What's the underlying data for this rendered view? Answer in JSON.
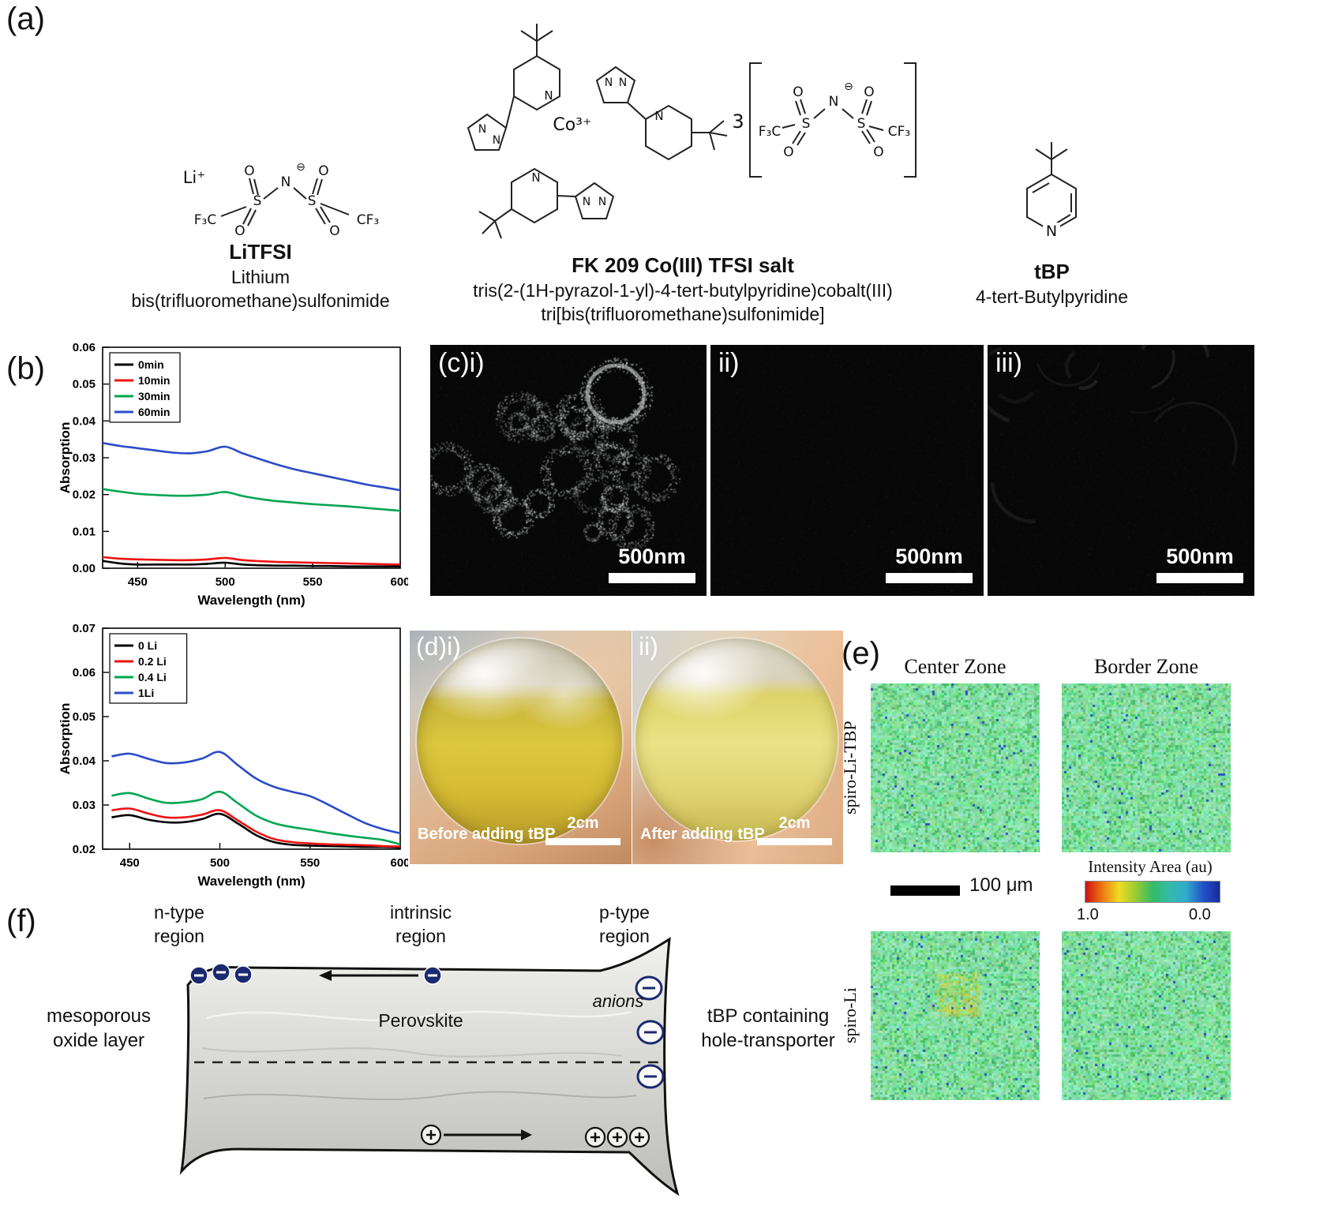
{
  "panel_a": {
    "label": "(a)",
    "litfsi": {
      "cation": "Li⁺",
      "charge": "⊖",
      "n": "N",
      "s": "S",
      "o": "O",
      "left_group": "F₃C",
      "right_group": "CF₃",
      "name": "LiTFSI",
      "caption": [
        "Lithium",
        "bis(trifluoromethane)sulfonimide"
      ]
    },
    "fk209": {
      "center": "Co³⁺",
      "multiplier": "3",
      "charge": "⊖",
      "n": "N",
      "s": "S",
      "o": "O",
      "left_group": "F₃C",
      "right_group": "CF₃",
      "name": "FK 209 Co(III) TFSI salt",
      "caption": [
        "tris(2-(1H-pyrazol-1-yl)-4-tert-butylpyridine)cobalt(III)",
        "tri[bis(trifluoromethane)sulfonimide]"
      ]
    },
    "tbp": {
      "n": "N",
      "name": "tBP",
      "caption": [
        "4-tert-Butylpyridine"
      ]
    }
  },
  "panel_b": {
    "label": "(b)"
  },
  "panel_c": {
    "labels": [
      "(c)i)",
      "ii)",
      "iii)"
    ],
    "scale_bar": "500nm"
  },
  "panel_d": {
    "labels": [
      "(d)i)",
      "ii)"
    ],
    "captions": [
      "Before adding tBP",
      "After adding tBP"
    ],
    "scale_bar": "2cm"
  },
  "panel_e": {
    "label": "(e)",
    "columns": [
      "Center Zone",
      "Border Zone"
    ],
    "rows": [
      "spiro-Li-TBP",
      "spiro-Li"
    ],
    "scale_bar": "100 μm",
    "colorbar_title": "Intensity Area (au)",
    "colorbar_max": "1.0",
    "colorbar_min": "0.0",
    "colorbar_colors": [
      "#cc1111",
      "#ee7711",
      "#eedd22",
      "#99cc33",
      "#33bb66",
      "#33bbaa",
      "#33aacc",
      "#2255cc",
      "#182899"
    ]
  },
  "panel_f": {
    "label": "(f)",
    "regions": [
      {
        "line1": "n-type",
        "line2": "region"
      },
      {
        "line1": "intrinsic",
        "line2": "region"
      },
      {
        "line1": "p-type",
        "line2": "region"
      }
    ],
    "left_label": [
      "mesoporous",
      "oxide layer"
    ],
    "center_label": "Perovskite",
    "anions_label": "anions",
    "right_label": [
      "tBP containing",
      "hole-transporter"
    ]
  },
  "chart_data": [
    {
      "type": "line",
      "title": "",
      "xlabel": "Wavelength (nm)",
      "ylabel": "Absorption",
      "xlim": [
        430,
        600
      ],
      "ylim": [
        0.0,
        0.06
      ],
      "xticks": [
        450,
        500,
        550,
        600
      ],
      "yticks": [
        0.0,
        0.01,
        0.02,
        0.03,
        0.04,
        0.05,
        0.06
      ],
      "legend_position": "top-left",
      "grid": false,
      "x": [
        430,
        440,
        450,
        460,
        470,
        480,
        490,
        500,
        510,
        520,
        530,
        540,
        550,
        560,
        570,
        580,
        590,
        600
      ],
      "series": [
        {
          "name": "0min",
          "color": "#000000",
          "values": [
            0.002,
            0.0013,
            0.001,
            0.001,
            0.001,
            0.001,
            0.0012,
            0.0015,
            0.001,
            0.0008,
            0.0007,
            0.0007,
            0.0006,
            0.0006,
            0.0005,
            0.0005,
            0.0005,
            0.0005
          ]
        },
        {
          "name": "10min",
          "color": "#ee1111",
          "values": [
            0.003,
            0.0026,
            0.0024,
            0.0023,
            0.0022,
            0.0022,
            0.0024,
            0.0028,
            0.0022,
            0.0019,
            0.0017,
            0.0016,
            0.0015,
            0.0014,
            0.0013,
            0.0012,
            0.0011,
            0.001
          ]
        },
        {
          "name": "30min",
          "color": "#00a550",
          "values": [
            0.0215,
            0.0208,
            0.0202,
            0.0199,
            0.0197,
            0.0197,
            0.02,
            0.0207,
            0.0196,
            0.0188,
            0.0182,
            0.0178,
            0.0174,
            0.0171,
            0.0168,
            0.0164,
            0.016,
            0.0156
          ]
        },
        {
          "name": "60min",
          "color": "#2b4bc8",
          "values": [
            0.034,
            0.0332,
            0.0326,
            0.032,
            0.0314,
            0.0312,
            0.0318,
            0.033,
            0.0312,
            0.0296,
            0.0281,
            0.0268,
            0.0258,
            0.0248,
            0.0238,
            0.0228,
            0.022,
            0.0212
          ]
        }
      ]
    },
    {
      "type": "line",
      "title": "",
      "xlabel": "Wavelength (nm)",
      "ylabel": "Absorption",
      "xlim": [
        435,
        600
      ],
      "ylim": [
        0.02,
        0.07
      ],
      "xticks": [
        450,
        500,
        550,
        600
      ],
      "yticks": [
        0.02,
        0.03,
        0.04,
        0.05,
        0.06,
        0.07
      ],
      "legend_position": "top-left",
      "grid": false,
      "x": [
        440,
        450,
        460,
        470,
        480,
        490,
        500,
        510,
        520,
        530,
        540,
        550,
        560,
        570,
        580,
        590,
        600
      ],
      "series": [
        {
          "name": "0 Li",
          "color": "#000000",
          "values": [
            0.0272,
            0.0277,
            0.0267,
            0.0261,
            0.0261,
            0.0268,
            0.028,
            0.0258,
            0.0232,
            0.0216,
            0.021,
            0.0208,
            0.0207,
            0.0206,
            0.0205,
            0.0205,
            0.0204
          ]
        },
        {
          "name": "0.2 Li",
          "color": "#ee1111",
          "values": [
            0.0288,
            0.0292,
            0.0281,
            0.0272,
            0.0272,
            0.0278,
            0.0288,
            0.0265,
            0.024,
            0.0223,
            0.0216,
            0.0213,
            0.0211,
            0.021,
            0.0209,
            0.0207,
            0.0206
          ]
        },
        {
          "name": "0.4 Li",
          "color": "#00a550",
          "values": [
            0.0321,
            0.0327,
            0.0315,
            0.0305,
            0.0306,
            0.0313,
            0.033,
            0.0304,
            0.0276,
            0.0259,
            0.025,
            0.0244,
            0.0237,
            0.0231,
            0.0226,
            0.0221,
            0.0211
          ]
        },
        {
          "name": "1Li",
          "color": "#2b4bc8",
          "values": [
            0.041,
            0.0416,
            0.0405,
            0.0395,
            0.0396,
            0.0405,
            0.042,
            0.039,
            0.036,
            0.0341,
            0.033,
            0.032,
            0.0301,
            0.028,
            0.026,
            0.0246,
            0.0236
          ]
        }
      ]
    }
  ]
}
